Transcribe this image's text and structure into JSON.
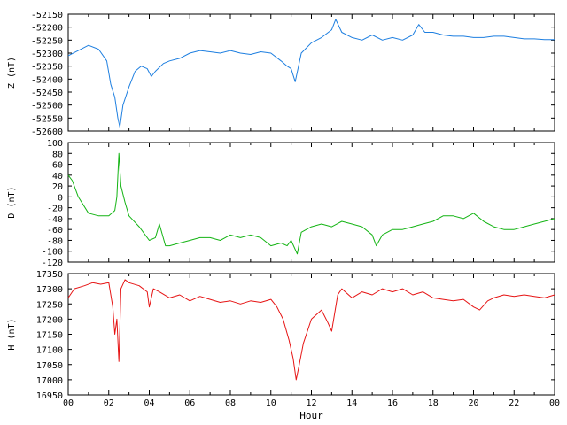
{
  "chart_data": [
    {
      "type": "line",
      "ylabel": "Z (nT)",
      "ylim": [
        -52600,
        -52150
      ],
      "yticks": [
        -52150,
        -52200,
        -52250,
        -52300,
        -52350,
        -52400,
        -52450,
        -52500,
        -52550,
        -52600
      ],
      "xlim": [
        0,
        24
      ],
      "color": "#1e7fe0",
      "series": [
        {
          "x": [
            0,
            0.5,
            1.0,
            1.5,
            1.9,
            2.1,
            2.3,
            2.45,
            2.55,
            2.7,
            3.0,
            3.3,
            3.6,
            3.9,
            4.1,
            4.3,
            4.7,
            5.0,
            5.5,
            6.0,
            6.5,
            7.0,
            7.5,
            8.0,
            8.5,
            9.0,
            9.5,
            10.0,
            10.5,
            10.8,
            11.0,
            11.2,
            11.5,
            12.0,
            12.5,
            13.0,
            13.2,
            13.5,
            14.0,
            14.5,
            15.0,
            15.5,
            16.0,
            16.5,
            17.0,
            17.3,
            17.6,
            18.0,
            18.5,
            19.0,
            19.5,
            20.0,
            20.5,
            21.0,
            21.5,
            22.0,
            22.5,
            23.0,
            23.5,
            24.0
          ],
          "y": [
            -52310,
            -52290,
            -52270,
            -52285,
            -52330,
            -52420,
            -52470,
            -52550,
            -52585,
            -52500,
            -52430,
            -52370,
            -52350,
            -52360,
            -52390,
            -52370,
            -52340,
            -52330,
            -52320,
            -52300,
            -52290,
            -52295,
            -52300,
            -52290,
            -52300,
            -52305,
            -52295,
            -52300,
            -52330,
            -52350,
            -52360,
            -52410,
            -52300,
            -52260,
            -52240,
            -52210,
            -52170,
            -52220,
            -52240,
            -52250,
            -52230,
            -52250,
            -52240,
            -52250,
            -52230,
            -52190,
            -52220,
            -52220,
            -52230,
            -52235,
            -52235,
            -52240,
            -52240,
            -52235,
            -52235,
            -52240,
            -52245,
            -52245,
            -52248,
            -52248
          ]
        }
      ]
    },
    {
      "type": "line",
      "ylabel": "D (nT)",
      "ylim": [
        -120,
        100
      ],
      "yticks": [
        100,
        80,
        60,
        40,
        20,
        0,
        -20,
        -40,
        -60,
        -80,
        -100,
        -120
      ],
      "xlim": [
        0,
        24
      ],
      "color": "#14b414",
      "series": [
        {
          "x": [
            0,
            0.2,
            0.5,
            1.0,
            1.5,
            2.0,
            2.3,
            2.4,
            2.5,
            2.6,
            2.8,
            3.0,
            3.5,
            4.0,
            4.3,
            4.5,
            4.8,
            5.0,
            5.5,
            6.0,
            6.5,
            7.0,
            7.5,
            8.0,
            8.5,
            9.0,
            9.5,
            10.0,
            10.5,
            10.8,
            11.0,
            11.3,
            11.5,
            12.0,
            12.5,
            13.0,
            13.5,
            14.0,
            14.5,
            15.0,
            15.2,
            15.5,
            16.0,
            16.5,
            17.0,
            17.5,
            18.0,
            18.5,
            19.0,
            19.5,
            20.0,
            20.5,
            21.0,
            21.5,
            22.0,
            22.5,
            23.0,
            23.5,
            24.0
          ],
          "y": [
            40,
            30,
            0,
            -30,
            -35,
            -35,
            -25,
            0,
            80,
            20,
            -10,
            -35,
            -55,
            -80,
            -75,
            -50,
            -90,
            -90,
            -85,
            -80,
            -75,
            -75,
            -80,
            -70,
            -75,
            -70,
            -75,
            -90,
            -85,
            -90,
            -80,
            -105,
            -65,
            -55,
            -50,
            -55,
            -45,
            -50,
            -55,
            -70,
            -90,
            -70,
            -60,
            -60,
            -55,
            -50,
            -45,
            -35,
            -35,
            -40,
            -30,
            -45,
            -55,
            -60,
            -60,
            -55,
            -50,
            -45,
            -40
          ]
        }
      ]
    },
    {
      "type": "line",
      "ylabel": "H (nT)",
      "xlabel": "Hour",
      "ylim": [
        16950,
        17350
      ],
      "yticks": [
        17350,
        17300,
        17250,
        17200,
        17150,
        17100,
        17050,
        17000,
        16950
      ],
      "xlim": [
        0,
        24
      ],
      "xticks": [
        "00",
        "02",
        "04",
        "06",
        "08",
        "10",
        "12",
        "14",
        "16",
        "18",
        "20",
        "22",
        "00"
      ],
      "color": "#e61414",
      "series": [
        {
          "x": [
            0,
            0.3,
            0.8,
            1.2,
            1.6,
            2.0,
            2.2,
            2.3,
            2.4,
            2.5,
            2.6,
            2.8,
            3.0,
            3.5,
            3.9,
            4.0,
            4.2,
            4.5,
            5.0,
            5.5,
            6.0,
            6.5,
            7.0,
            7.5,
            8.0,
            8.5,
            9.0,
            9.5,
            10.0,
            10.3,
            10.6,
            10.9,
            11.1,
            11.25,
            11.4,
            11.6,
            12.0,
            12.5,
            12.8,
            13.0,
            13.3,
            13.5,
            14.0,
            14.5,
            15.0,
            15.5,
            16.0,
            16.5,
            17.0,
            17.5,
            18.0,
            18.5,
            19.0,
            19.5,
            20.0,
            20.3,
            20.7,
            21.0,
            21.5,
            22.0,
            22.5,
            23.0,
            23.5,
            24.0
          ],
          "y": [
            17270,
            17300,
            17310,
            17320,
            17315,
            17320,
            17240,
            17150,
            17200,
            17060,
            17300,
            17330,
            17320,
            17310,
            17290,
            17240,
            17300,
            17290,
            17270,
            17280,
            17260,
            17275,
            17265,
            17255,
            17260,
            17250,
            17260,
            17255,
            17265,
            17240,
            17200,
            17130,
            17070,
            17000,
            17050,
            17120,
            17200,
            17230,
            17190,
            17160,
            17280,
            17300,
            17270,
            17290,
            17280,
            17300,
            17290,
            17300,
            17280,
            17290,
            17270,
            17265,
            17260,
            17265,
            17240,
            17230,
            17260,
            17270,
            17280,
            17275,
            17280,
            17275,
            17270,
            17280
          ]
        }
      ]
    }
  ]
}
